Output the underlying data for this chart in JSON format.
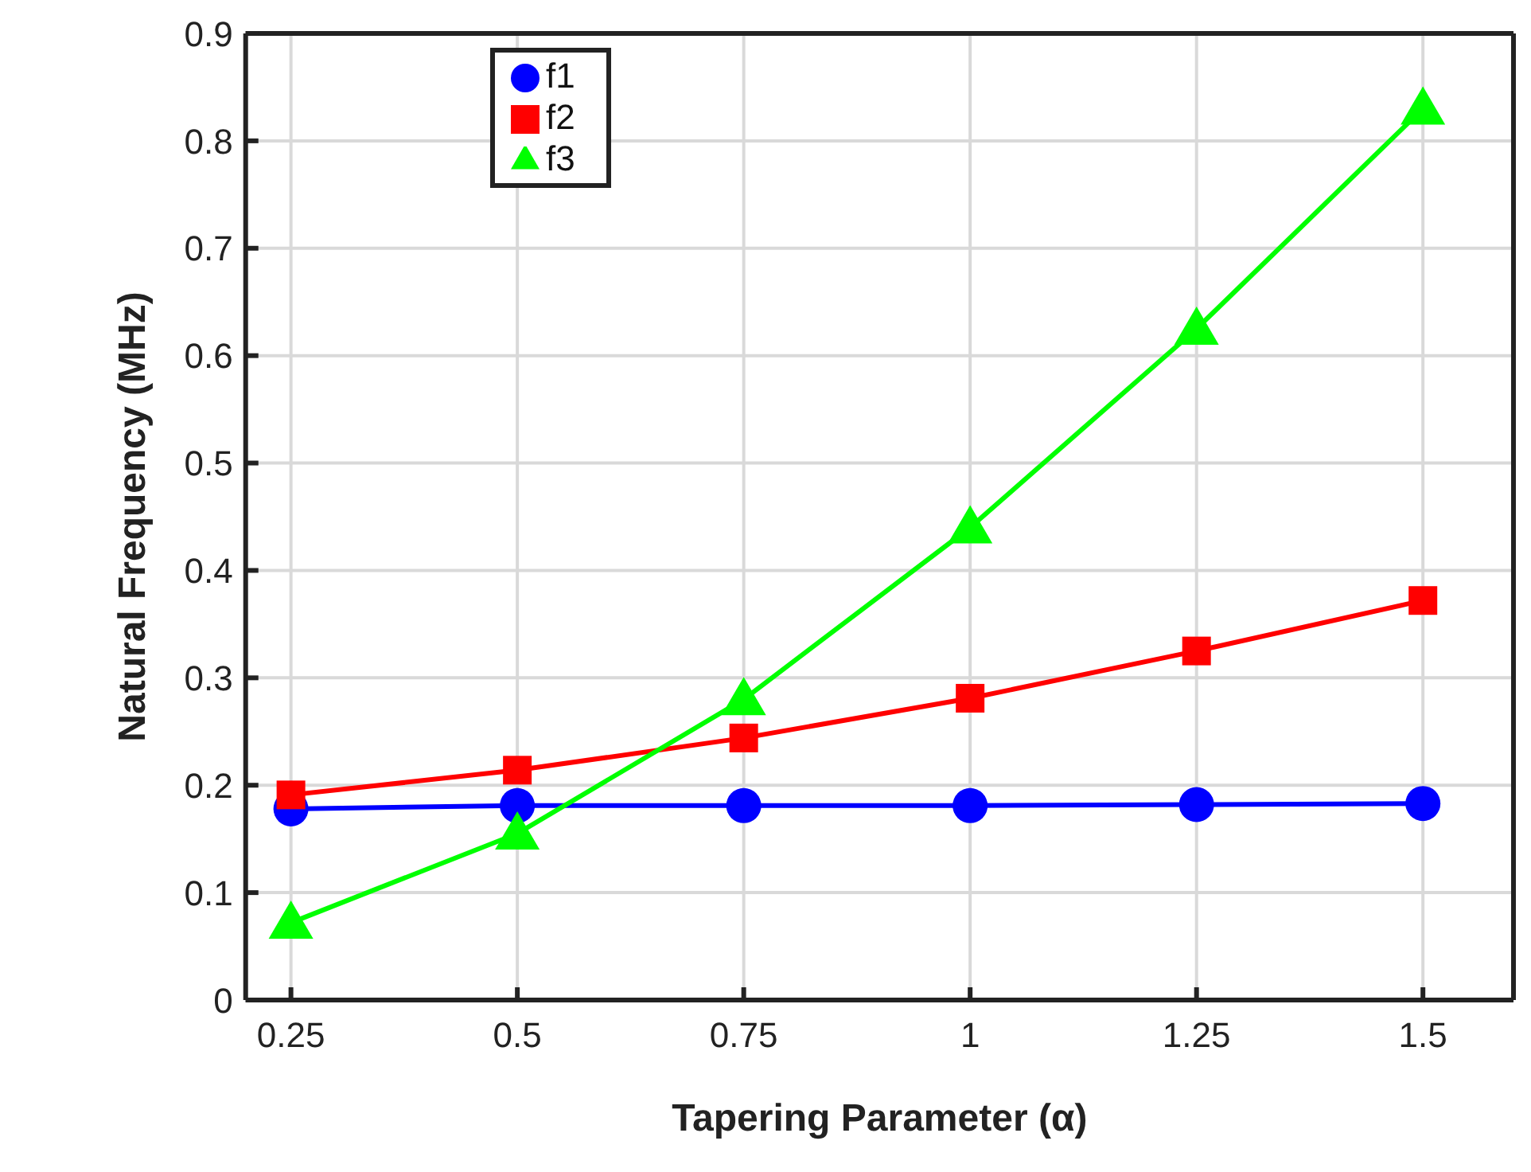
{
  "chart_data": {
    "type": "line",
    "xlabel": "Tapering Parameter (α)",
    "ylabel": "Natural Frequency (MHz)",
    "x": [
      0.25,
      0.5,
      0.75,
      1,
      1.25,
      1.5
    ],
    "series": [
      {
        "name": "f1",
        "color": "#0000ff",
        "marker": "circle",
        "values": [
          0.178,
          0.181,
          0.181,
          0.181,
          0.182,
          0.183
        ]
      },
      {
        "name": "f2",
        "color": "#ff0000",
        "marker": "square",
        "values": [
          0.191,
          0.214,
          0.244,
          0.281,
          0.325,
          0.372
        ]
      },
      {
        "name": "f3",
        "color": "#00ff00",
        "marker": "triangle",
        "values": [
          0.072,
          0.155,
          0.28,
          0.44,
          0.625,
          0.83
        ]
      }
    ],
    "xlim": [
      0.2,
      1.6
    ],
    "xticks": [
      0.25,
      0.5,
      0.75,
      1,
      1.25,
      1.5
    ],
    "ylim": [
      0,
      0.9
    ],
    "yticks": [
      0,
      0.1,
      0.2,
      0.3,
      0.4,
      0.5,
      0.6,
      0.7,
      0.8,
      0.9
    ],
    "grid": true,
    "legend": "top left"
  }
}
